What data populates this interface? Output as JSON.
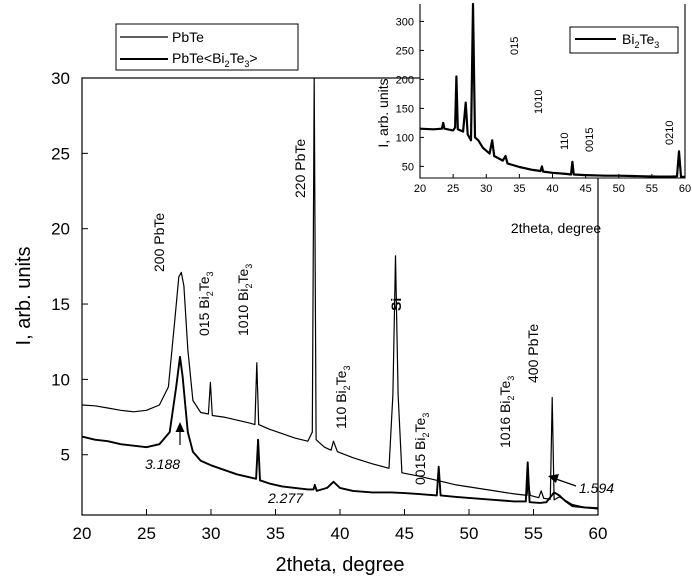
{
  "chart_data": [
    {
      "type": "line",
      "xlabel": "2theta, degree",
      "ylabel": "I, arb. units",
      "xlim": [
        20,
        60
      ],
      "ylim": [
        1,
        30
      ],
      "xticks": [
        20,
        25,
        30,
        35,
        40,
        45,
        50,
        55,
        60
      ],
      "yticks": [
        5,
        10,
        15,
        20,
        25,
        30
      ],
      "grid": false,
      "legend_position": "top-left",
      "series": [
        {
          "name": "PbTe",
          "points": [
            [
              20,
              8.3
            ],
            [
              21,
              8.25
            ],
            [
              22,
              8.1
            ],
            [
              23,
              7.95
            ],
            [
              24,
              7.85
            ],
            [
              25,
              7.95
            ],
            [
              26,
              8.3
            ],
            [
              26.7,
              9.5
            ],
            [
              27.2,
              14
            ],
            [
              27.5,
              16.8
            ],
            [
              27.7,
              17.1
            ],
            [
              27.9,
              16.2
            ],
            [
              28.2,
              12
            ],
            [
              28.6,
              8.6
            ],
            [
              29.2,
              7.8
            ],
            [
              29.8,
              7.7
            ],
            [
              29.95,
              9.8
            ],
            [
              30.1,
              7.6
            ],
            [
              31,
              7.5
            ],
            [
              32,
              7.3
            ],
            [
              33,
              7.1
            ],
            [
              33.4,
              7.0
            ],
            [
              33.55,
              11.1
            ],
            [
              33.7,
              7.0
            ],
            [
              34.5,
              6.7
            ],
            [
              35.5,
              6.4
            ],
            [
              36.5,
              6.1
            ],
            [
              37.5,
              5.9
            ],
            [
              37.85,
              6.5
            ],
            [
              38.0,
              30
            ],
            [
              38.15,
              6.0
            ],
            [
              38.8,
              5.5
            ],
            [
              39.3,
              5.3
            ],
            [
              39.5,
              5.9
            ],
            [
              39.8,
              5.2
            ],
            [
              41,
              4.8
            ],
            [
              42.5,
              4.4
            ],
            [
              43.8,
              4.1
            ],
            [
              44.1,
              9
            ],
            [
              44.3,
              18.2
            ],
            [
              44.5,
              9
            ],
            [
              44.8,
              3.8
            ],
            [
              46,
              3.6
            ],
            [
              47.5,
              3.3
            ],
            [
              49,
              3.0
            ],
            [
              50.5,
              2.8
            ],
            [
              52,
              2.6
            ],
            [
              53.5,
              2.4
            ],
            [
              54.5,
              2.3
            ],
            [
              54.6,
              3.2
            ],
            [
              54.75,
              2.3
            ],
            [
              55.4,
              2.15
            ],
            [
              55.6,
              2.6
            ],
            [
              55.8,
              2.1
            ],
            [
              56.3,
              2.05
            ],
            [
              56.45,
              8.8
            ],
            [
              56.6,
              2.0
            ],
            [
              57,
              2.2
            ],
            [
              57.4,
              2.0
            ],
            [
              58,
              1.7
            ],
            [
              59,
              1.5
            ],
            [
              60,
              1.4
            ]
          ]
        },
        {
          "name": "PbTe<Bi2Te3>",
          "points": [
            [
              20,
              6.2
            ],
            [
              21,
              6.0
            ],
            [
              22,
              5.9
            ],
            [
              23,
              5.7
            ],
            [
              24,
              5.6
            ],
            [
              25,
              5.5
            ],
            [
              26,
              5.7
            ],
            [
              26.8,
              6.5
            ],
            [
              27.3,
              9.5
            ],
            [
              27.6,
              11.5
            ],
            [
              27.8,
              10.2
            ],
            [
              28.2,
              6.5
            ],
            [
              28.6,
              5.2
            ],
            [
              29.2,
              4.6
            ],
            [
              30,
              4.3
            ],
            [
              31,
              4.0
            ],
            [
              32,
              3.7
            ],
            [
              33,
              3.5
            ],
            [
              33.5,
              3.4
            ],
            [
              33.65,
              6.0
            ],
            [
              33.8,
              3.3
            ],
            [
              34.5,
              3.1
            ],
            [
              35.5,
              2.9
            ],
            [
              36.5,
              2.8
            ],
            [
              37.5,
              2.7
            ],
            [
              37.95,
              2.7
            ],
            [
              38.05,
              3.0
            ],
            [
              38.2,
              2.6
            ],
            [
              39,
              2.8
            ],
            [
              39.5,
              3.2
            ],
            [
              40,
              2.8
            ],
            [
              41,
              2.6
            ],
            [
              42.5,
              2.5
            ],
            [
              44,
              2.5
            ],
            [
              45,
              2.45
            ],
            [
              46,
              2.4
            ],
            [
              47.5,
              2.3
            ],
            [
              47.65,
              4.2
            ],
            [
              47.8,
              2.3
            ],
            [
              49,
              2.2
            ],
            [
              50.5,
              2.1
            ],
            [
              52,
              2.0
            ],
            [
              53.5,
              1.9
            ],
            [
              54.4,
              1.9
            ],
            [
              54.55,
              4.5
            ],
            [
              54.7,
              1.85
            ],
            [
              55.5,
              1.8
            ],
            [
              56,
              1.85
            ],
            [
              56.6,
              2.5
            ],
            [
              57,
              2.3
            ],
            [
              57.5,
              1.9
            ],
            [
              58,
              1.6
            ],
            [
              59,
              1.5
            ],
            [
              60,
              1.45
            ]
          ]
        }
      ],
      "annotations": [
        {
          "text": "200 PbTe",
          "x": 27.7
        },
        {
          "text_parts": [
            "015 Bi",
            "2",
            "Te",
            "3"
          ],
          "x": 29.95
        },
        {
          "text_parts": [
            "1010 Bi",
            "2",
            "Te",
            "3"
          ],
          "x": 33.55
        },
        {
          "text": "220 PbTe",
          "x": 38.0
        },
        {
          "text_parts": [
            "110 Bi",
            "2",
            "Te",
            "3"
          ],
          "x": 39.5
        },
        {
          "text": "Si",
          "x": 44.3
        },
        {
          "text_parts": [
            "0015 Bi",
            "2",
            "Te",
            "3"
          ],
          "x": 47.65
        },
        {
          "text_parts": [
            "1016 Bi",
            "2",
            "Te",
            "3"
          ],
          "x": 54.55
        },
        {
          "text": "400 PbTe",
          "x": 56.45
        },
        {
          "text": "3.188",
          "x": 27.6
        },
        {
          "text": "2.277",
          "x": 38.0
        },
        {
          "text": "1.594",
          "x": 57.3
        }
      ]
    },
    {
      "type": "line",
      "xlabel": "2theta, degree",
      "ylabel": "I, arb. units",
      "xlim": [
        20,
        60
      ],
      "ylim": [
        30,
        330
      ],
      "xticks": [
        20,
        25,
        30,
        35,
        40,
        45,
        50,
        55,
        60
      ],
      "yticks": [
        50,
        100,
        150,
        200,
        250,
        300
      ],
      "grid": false,
      "legend_position": "top-right",
      "series": [
        {
          "name": "Bi2Te3",
          "points": [
            [
              20,
              115
            ],
            [
              22,
              114
            ],
            [
              23.3,
              115
            ],
            [
              23.5,
              125
            ],
            [
              23.7,
              115
            ],
            [
              25,
              112
            ],
            [
              25.3,
              117
            ],
            [
              25.5,
              205
            ],
            [
              25.7,
              114
            ],
            [
              26.5,
              110
            ],
            [
              26.9,
              160
            ],
            [
              27.2,
              105
            ],
            [
              27.7,
              95
            ],
            [
              28.0,
              330
            ],
            [
              28.3,
              100
            ],
            [
              28.8,
              95
            ],
            [
              29.5,
              82
            ],
            [
              30.5,
              72
            ],
            [
              30.9,
              95
            ],
            [
              31.2,
              68
            ],
            [
              32.5,
              60
            ],
            [
              32.9,
              68
            ],
            [
              33.2,
              55
            ],
            [
              35,
              49
            ],
            [
              37,
              44
            ],
            [
              38.2,
              42
            ],
            [
              38.4,
              50
            ],
            [
              38.6,
              41
            ],
            [
              40,
              39
            ],
            [
              42,
              37
            ],
            [
              42.8,
              36
            ],
            [
              43.0,
              58
            ],
            [
              43.2,
              36
            ],
            [
              45,
              35
            ],
            [
              48,
              34
            ],
            [
              50,
              34
            ],
            [
              52,
              33.5
            ],
            [
              54,
              33
            ],
            [
              56,
              32.5
            ],
            [
              58,
              32.5
            ],
            [
              58.8,
              33
            ],
            [
              59.1,
              76
            ],
            [
              59.4,
              32
            ],
            [
              60,
              32
            ]
          ]
        }
      ],
      "annotations": [
        {
          "text": "015",
          "x": 28.0
        },
        {
          "text": "1010",
          "x": 30.9
        },
        {
          "text": "110",
          "x": 33.7
        },
        {
          "text": "0015",
          "x": 42.2
        },
        {
          "text": "0210",
          "x": 58.1
        }
      ]
    }
  ],
  "main_legend": {
    "entries": [
      {
        "label": "PbTe"
      },
      {
        "label_parts": [
          "PbTe<Bi",
          "2",
          "Te",
          "3",
          ">"
        ]
      }
    ]
  },
  "inset_legend": {
    "entries": [
      {
        "label_parts": [
          "Bi",
          "2",
          "Te",
          "3"
        ]
      }
    ]
  },
  "colors": {
    "line": "#000000",
    "background": "#ffffff"
  }
}
